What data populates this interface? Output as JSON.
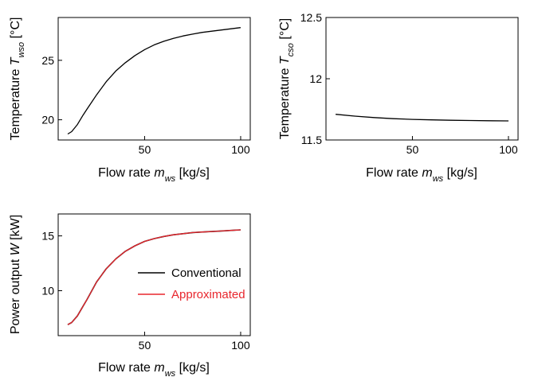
{
  "chart_data": [
    {
      "type": "line",
      "xlabel": {
        "prefix": "Flow rate ",
        "var": "m",
        "sub": "ws",
        "unit": " [kg/s]"
      },
      "ylabel": {
        "prefix": "Temperature ",
        "var": "T",
        "sub": "wso",
        "unit": " [°C]"
      },
      "xlim": [
        5,
        105
      ],
      "ylim": [
        18.3,
        28.6
      ],
      "x_ticks": [
        50,
        100
      ],
      "y_ticks": [
        20,
        25
      ],
      "grid": false,
      "series": [
        {
          "color": "#000000",
          "x": [
            10,
            12,
            15,
            18,
            20,
            25,
            30,
            35,
            40,
            45,
            50,
            55,
            60,
            65,
            70,
            75,
            80,
            85,
            90,
            95,
            100
          ],
          "y": [
            18.8,
            19.0,
            19.6,
            20.4,
            20.9,
            22.1,
            23.2,
            24.1,
            24.8,
            25.4,
            25.9,
            26.3,
            26.6,
            26.85,
            27.05,
            27.2,
            27.35,
            27.45,
            27.55,
            27.65,
            27.75
          ]
        }
      ]
    },
    {
      "type": "line",
      "xlabel": {
        "prefix": "Flow rate ",
        "var": "m",
        "sub": "ws",
        "unit": " [kg/s]"
      },
      "ylabel": {
        "prefix": "Temperature ",
        "var": "T",
        "sub": "cso",
        "unit": " [°C]"
      },
      "xlim": [
        5,
        105
      ],
      "ylim": [
        11.5,
        12.5
      ],
      "x_ticks": [
        50,
        100
      ],
      "y_ticks": [
        11.5,
        12,
        12.5
      ],
      "grid": false,
      "series": [
        {
          "color": "#000000",
          "x": [
            10,
            20,
            30,
            40,
            50,
            60,
            70,
            80,
            90,
            100
          ],
          "y": [
            11.71,
            11.695,
            11.683,
            11.674,
            11.668,
            11.664,
            11.661,
            11.659,
            11.657,
            11.656
          ]
        }
      ]
    },
    {
      "type": "line",
      "xlabel": {
        "prefix": "Flow rate ",
        "var": "m",
        "sub": "ws",
        "unit": " [kg/s]"
      },
      "ylabel": {
        "prefix": "Power output ",
        "var": "W",
        "sub": "",
        "unit": " [kW]"
      },
      "xlim": [
        5,
        105
      ],
      "ylim": [
        5.9,
        17.0
      ],
      "x_ticks": [
        50,
        100
      ],
      "y_ticks": [
        10,
        15
      ],
      "grid": false,
      "legend": "bottom-right",
      "series": [
        {
          "name": "Conventional",
          "color": "#000000",
          "x": [
            10,
            12,
            15,
            18,
            20,
            25,
            30,
            35,
            40,
            45,
            50,
            55,
            60,
            65,
            70,
            75,
            80,
            85,
            90,
            95,
            100
          ],
          "y": [
            6.9,
            7.1,
            7.7,
            8.6,
            9.2,
            10.8,
            12.0,
            12.9,
            13.6,
            14.1,
            14.5,
            14.75,
            14.95,
            15.1,
            15.2,
            15.3,
            15.35,
            15.4,
            15.45,
            15.5,
            15.55
          ]
        },
        {
          "name": "Approximated",
          "color": "#e8262d",
          "x": [
            10,
            12,
            15,
            18,
            20,
            25,
            30,
            35,
            40,
            45,
            50,
            55,
            60,
            65,
            70,
            75,
            80,
            85,
            90,
            95,
            100
          ],
          "y": [
            6.9,
            7.1,
            7.7,
            8.6,
            9.2,
            10.8,
            12.0,
            12.9,
            13.6,
            14.1,
            14.5,
            14.75,
            14.95,
            15.1,
            15.2,
            15.3,
            15.35,
            15.4,
            15.45,
            15.5,
            15.55
          ]
        }
      ]
    }
  ]
}
